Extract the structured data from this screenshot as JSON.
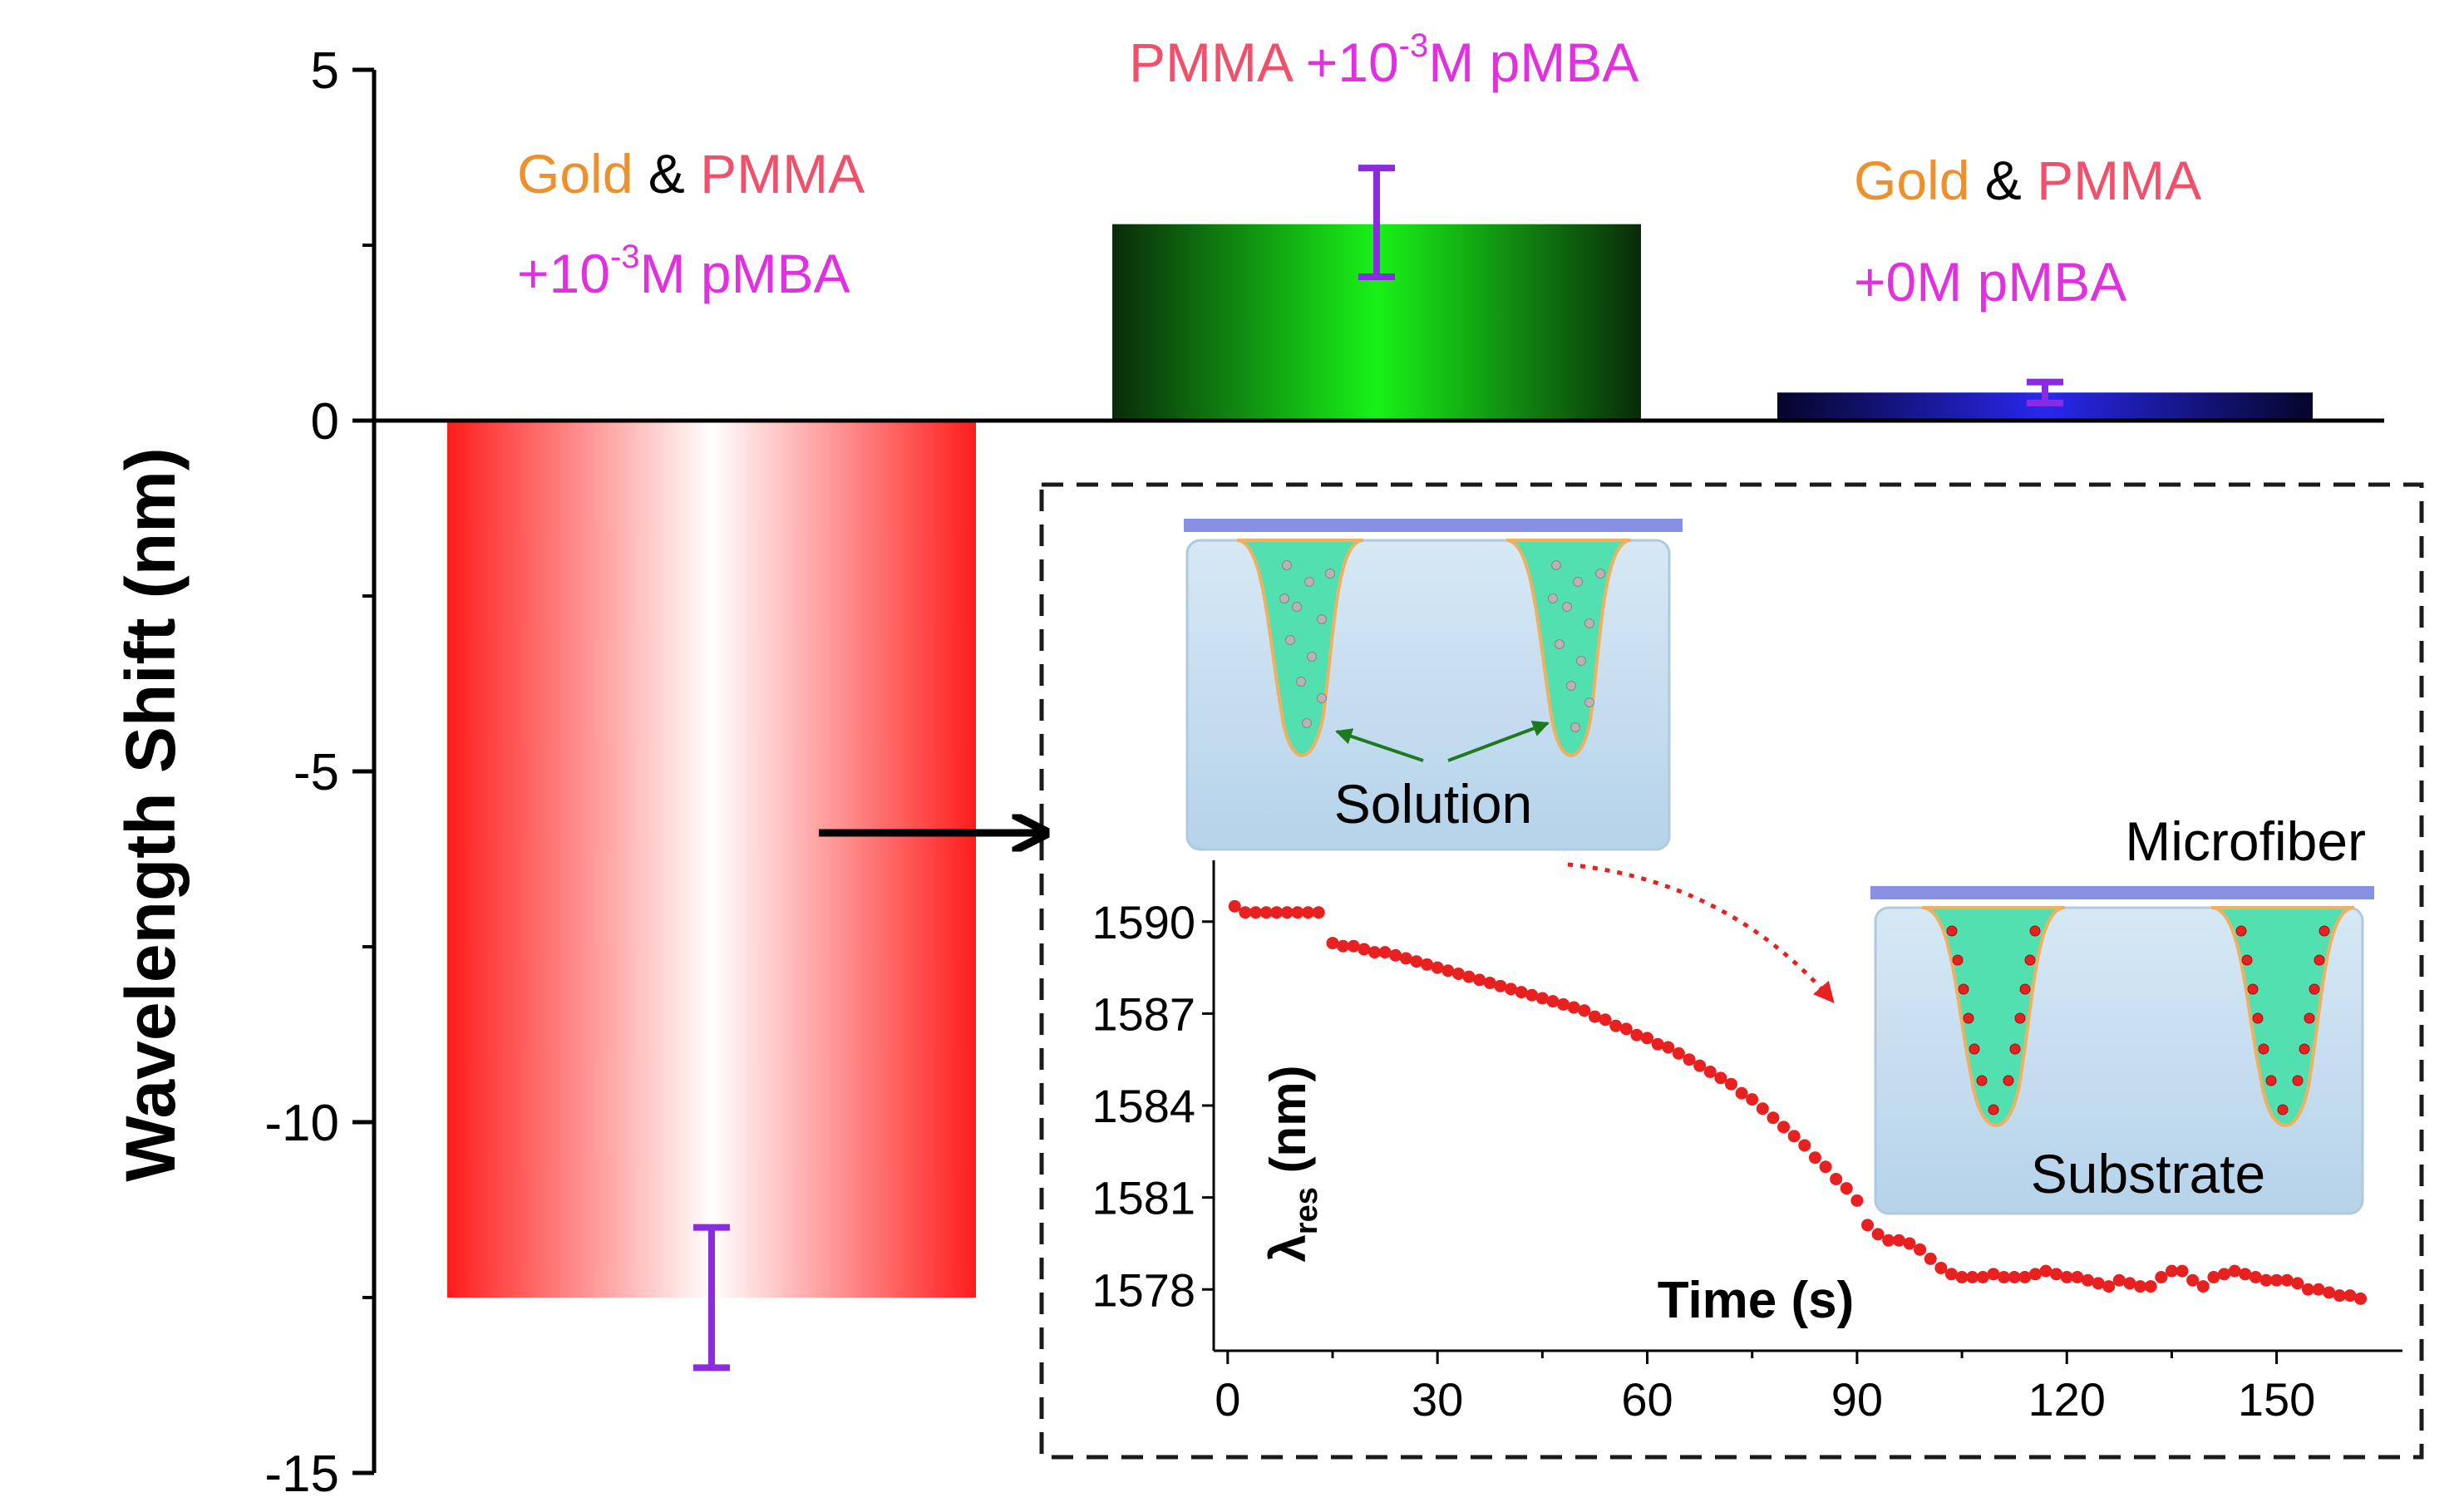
{
  "chart_data": [
    {
      "type": "bar",
      "ylabel": "Wavelength Shift (nm)",
      "ylim": [
        -15,
        5
      ],
      "yticks": [
        "5",
        "0",
        "-5",
        "-10",
        "-15"
      ],
      "grid": false,
      "series": [
        {
          "name": "Gold & PMMA +10^-3M pMBA",
          "value": -12.5,
          "error_low": -13.5,
          "error_high": -11.5,
          "color": "#ff2020",
          "label_line1": [
            {
              "text": "Gold",
              "color": "#f0902a"
            },
            {
              "text": " & ",
              "color": "#000000"
            },
            {
              "text": "PMMA",
              "color": "#f0506a"
            }
          ],
          "label_line2": {
            "pre": "+10",
            "sup": "-3",
            "post": "M pMBA",
            "color": "#e030e0"
          }
        },
        {
          "name": "PMMA +10^-3M pMBA",
          "value": 2.8,
          "error_low": 2.05,
          "error_high": 3.6,
          "color": "#19ee19",
          "label_line1": [
            {
              "text": "PMMA ",
              "color": "#f0506a"
            }
          ],
          "label_line2": {
            "pre": "+10",
            "sup": "-3",
            "post": "M pMBA",
            "color": "#e030e0"
          }
        },
        {
          "name": "Gold & PMMA +0M pMBA",
          "value": 0.4,
          "error_low": 0.25,
          "error_high": 0.55,
          "color": "#2525dd",
          "label_line1": [
            {
              "text": "Gold",
              "color": "#f0902a"
            },
            {
              "text": " & ",
              "color": "#000000"
            },
            {
              "text": "PMMA",
              "color": "#f0506a"
            }
          ],
          "label_line2": {
            "pre": "+0M pMBA",
            "sup": "",
            "post": "",
            "color": "#e030e0"
          }
        }
      ],
      "errorbar_color": "#8a2be2"
    },
    {
      "type": "scatter",
      "xlabel": "Time (s)",
      "ylabel_main": "λ",
      "ylabel_sub": "res",
      "ylabel_unit": " (nm)",
      "xlim": [
        -2,
        168
      ],
      "ylim": [
        1576,
        1592
      ],
      "xticks": [
        0,
        30,
        60,
        90,
        120,
        150
      ],
      "yticks": [
        1590,
        1587,
        1584,
        1581,
        1578
      ],
      "point_color": "#e82020",
      "x": [
        1,
        2.5,
        4,
        5.5,
        7,
        8.5,
        10,
        11.5,
        13,
        15,
        16.5,
        18,
        19.5,
        21,
        22.5,
        24,
        25.5,
        27,
        28.5,
        30,
        31.5,
        33,
        34.5,
        36,
        37.5,
        39,
        40.5,
        42,
        43.5,
        45,
        46.5,
        48,
        49.5,
        51,
        52.5,
        54,
        55.5,
        57,
        58.5,
        60,
        61.5,
        63,
        64.5,
        66,
        67.5,
        69,
        70.5,
        72,
        73.5,
        75,
        76.5,
        78,
        79.5,
        81,
        82.5,
        84,
        85.5,
        87,
        88.5,
        90,
        91.5,
        93,
        94.5,
        96,
        97.5,
        99,
        100.5,
        102,
        103.5,
        105,
        106.5,
        108,
        109.5,
        111,
        112.5,
        114,
        115.5,
        117,
        118.5,
        120,
        121.5,
        123,
        124.5,
        126,
        127.5,
        129,
        130.5,
        132,
        133.5,
        135,
        136.5,
        138,
        139.5,
        141,
        142.5,
        144,
        145.5,
        147,
        148.5,
        150,
        151.5,
        153,
        154.5,
        156,
        157.5,
        159,
        160.5,
        162
      ],
      "y": [
        1590.5,
        1590.3,
        1590.3,
        1590.3,
        1590.3,
        1590.3,
        1590.3,
        1590.3,
        1590.3,
        1589.3,
        1589.2,
        1589.2,
        1589.1,
        1589.0,
        1589.0,
        1588.9,
        1588.8,
        1588.7,
        1588.6,
        1588.5,
        1588.4,
        1588.3,
        1588.2,
        1588.1,
        1588.0,
        1587.9,
        1587.8,
        1587.7,
        1587.6,
        1587.5,
        1587.4,
        1587.3,
        1587.2,
        1587.1,
        1586.9,
        1586.8,
        1586.6,
        1586.5,
        1586.3,
        1586.2,
        1586.0,
        1585.9,
        1585.7,
        1585.5,
        1585.3,
        1585.1,
        1584.9,
        1584.7,
        1584.4,
        1584.2,
        1583.9,
        1583.6,
        1583.3,
        1583.0,
        1582.7,
        1582.3,
        1582.0,
        1581.6,
        1581.3,
        1580.9,
        1580.1,
        1579.8,
        1579.6,
        1579.6,
        1579.5,
        1579.3,
        1579.0,
        1578.7,
        1578.5,
        1578.4,
        1578.4,
        1578.4,
        1578.5,
        1578.4,
        1578.4,
        1578.4,
        1578.5,
        1578.6,
        1578.5,
        1578.4,
        1578.4,
        1578.3,
        1578.2,
        1578.1,
        1578.3,
        1578.2,
        1578.1,
        1578.1,
        1578.4,
        1578.6,
        1578.6,
        1578.3,
        1578.1,
        1578.4,
        1578.5,
        1578.6,
        1578.5,
        1578.4,
        1578.3,
        1578.3,
        1578.3,
        1578.2,
        1578.0,
        1578.0,
        1577.9,
        1577.8,
        1577.8,
        1577.7
      ]
    }
  ],
  "schematics": {
    "solution_label": "Solution",
    "microfiber_label": "Microfiber",
    "substrate_label": "Substrate"
  }
}
